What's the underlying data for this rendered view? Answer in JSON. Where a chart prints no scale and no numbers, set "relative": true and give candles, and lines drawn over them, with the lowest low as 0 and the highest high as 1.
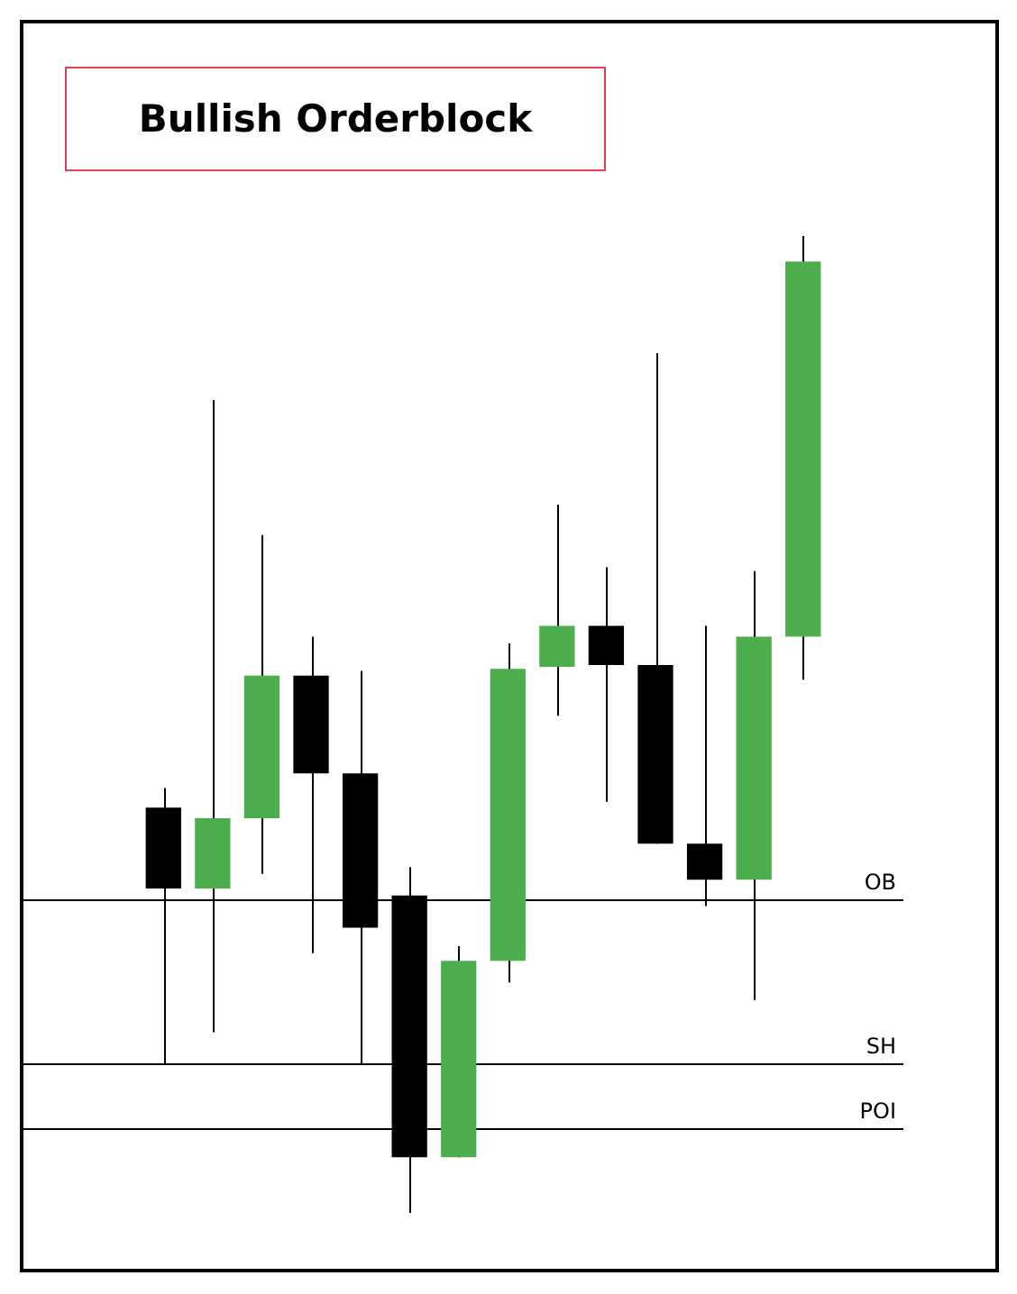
{
  "chart_data": {
    "type": "candlestick",
    "title": "Bullish Orderblock",
    "relative": true,
    "categories": [
      null,
      null,
      null,
      null,
      null,
      null,
      null,
      null,
      null,
      null,
      null,
      null,
      null,
      null
    ],
    "ohlc": [
      [
        0.415,
        0.435,
        0.153,
        0.332
      ],
      [
        0.332,
        0.832,
        0.185,
        0.404
      ],
      [
        0.404,
        0.694,
        0.347,
        0.55
      ],
      [
        0.55,
        0.59,
        0.266,
        0.45
      ],
      [
        0.45,
        0.555,
        0.153,
        0.292
      ],
      [
        0.325,
        0.354,
        0,
        0.057
      ],
      [
        0.057,
        0.273,
        0.057,
        0.258
      ],
      [
        0.258,
        0.583,
        0.236,
        0.557
      ],
      [
        0.559,
        0.725,
        0.509,
        0.601
      ],
      [
        0.601,
        0.661,
        0.421,
        0.561
      ],
      [
        0.561,
        0.88,
        0.378,
        0.378
      ],
      [
        0.378,
        0.601,
        0.314,
        0.341
      ],
      [
        0.341,
        0.657,
        0.218,
        0.59
      ],
      [
        0.59,
        1,
        0.546,
        0.974
      ]
    ],
    "colors": [
      "#000000",
      "#4cae4c",
      "#4cae4c",
      "#000000",
      "#000000",
      "#000000",
      "#4cae4c",
      "#4cae4c",
      "#4cae4c",
      "#000000",
      "#000000",
      "#000000",
      "#4cae4c",
      "#4cae4c"
    ],
    "ref_lines": [
      {
        "axis": "y",
        "value": 0.321,
        "label": "OB",
        "color": "#000000"
      },
      {
        "axis": "y",
        "value": 0.153,
        "label": "SH",
        "color": "#000000"
      },
      {
        "axis": "y",
        "value": 0.087,
        "label": "POI",
        "color": "#000000"
      }
    ],
    "legend": false
  }
}
